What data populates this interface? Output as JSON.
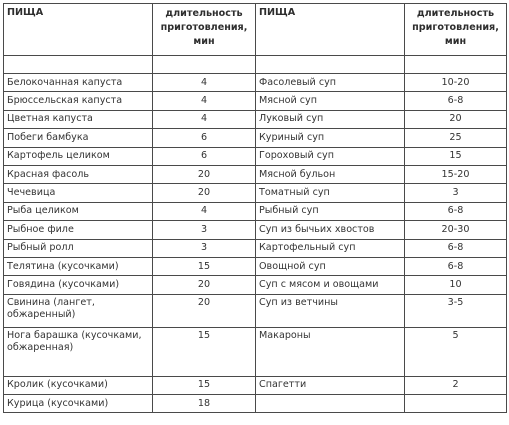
{
  "headers": {
    "food": "ПИЩА",
    "duration": "длительность приготовления, мин"
  },
  "left": [
    {
      "name": "Белокочанная капуста",
      "time": "4"
    },
    {
      "name": "Брюссельская капуста",
      "time": "4"
    },
    {
      "name": "Цветная капуста",
      "time": "4"
    },
    {
      "name": "Побеги бамбука",
      "time": "6"
    },
    {
      "name": "Картофель целиком",
      "time": "6"
    },
    {
      "name": "Красная фасоль",
      "time": "20"
    },
    {
      "name": "Чечевица",
      "time": "20"
    },
    {
      "name": "Рыба целиком",
      "time": "4"
    },
    {
      "name": "Рыбное филе",
      "time": "3"
    },
    {
      "name": "Рыбный ролл",
      "time": "3"
    },
    {
      "name": "Телятина (кусочками)",
      "time": "15"
    },
    {
      "name": "Говядина (кусочками)",
      "time": "20"
    },
    {
      "name": "Свинина (лангет, обжаренный)",
      "time": "20"
    },
    {
      "name": "Нога барашка (кусочками, обжаренная)",
      "time": "15"
    },
    {
      "name": "Кролик (кусочками)",
      "time": "15"
    },
    {
      "name": "Курица (кусочками)",
      "time": "18"
    }
  ],
  "right": [
    {
      "name": "Фасолевый суп",
      "time": "10-20"
    },
    {
      "name": "Мясной суп",
      "time": "6-8"
    },
    {
      "name": "Луковый суп",
      "time": "20"
    },
    {
      "name": "Куриный суп",
      "time": "25"
    },
    {
      "name": "Гороховый суп",
      "time": "15"
    },
    {
      "name": "Мясной бульон",
      "time": "15-20"
    },
    {
      "name": "Томатный суп",
      "time": "3"
    },
    {
      "name": "Рыбный суп",
      "time": "6-8"
    },
    {
      "name": "Суп из бычьих хвостов",
      "time": "20-30"
    },
    {
      "name": "Картофельный суп",
      "time": "6-8"
    },
    {
      "name": "Овощной суп",
      "time": "6-8"
    },
    {
      "name": "Суп с мясом и овощами",
      "time": "10"
    },
    {
      "name": "Суп из ветчины",
      "time": "3-5"
    },
    {
      "name": "Макароны",
      "time": "5"
    },
    {
      "name": "Спагетти",
      "time": "2"
    },
    {
      "name": "",
      "time": ""
    }
  ]
}
